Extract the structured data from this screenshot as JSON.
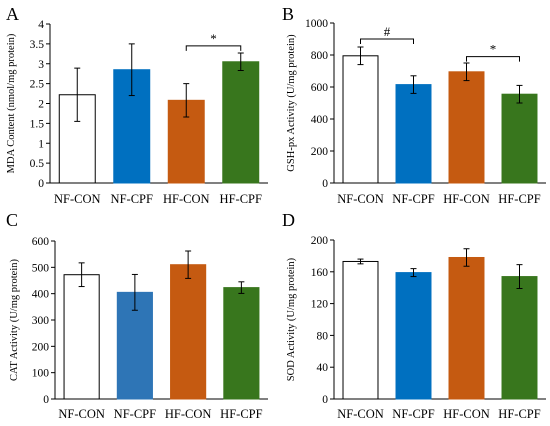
{
  "chart_data": [
    {
      "type": "bar",
      "panel_label": "A",
      "ylabel": "MDA Content (nmol/mg protein)",
      "categories": [
        "NF-CON",
        "NF-CPF",
        "HF-CON",
        "HF-CPF"
      ],
      "values": [
        2.22,
        2.85,
        2.08,
        3.05
      ],
      "errors": [
        0.67,
        0.65,
        0.42,
        0.22
      ],
      "ylim": [
        0,
        4
      ],
      "yticks": [
        "0",
        "0.5",
        "1",
        "1.5",
        "2",
        "2.5",
        "3",
        "3.5",
        "4"
      ],
      "annotations": [
        {
          "text": "*",
          "from": 2,
          "to": 3,
          "y": 3.45
        }
      ]
    },
    {
      "type": "bar",
      "panel_label": "B",
      "ylabel": "GSH-px Activity (U/mg protein)",
      "categories": [
        "NF-CON",
        "NF-CPF",
        "HF-CON",
        "HF-CPF"
      ],
      "values": [
        795,
        615,
        695,
        555
      ],
      "errors": [
        55,
        55,
        55,
        55
      ],
      "ylim": [
        0,
        1000
      ],
      "yticks": [
        "0",
        "200",
        "400",
        "600",
        "800",
        "1000"
      ],
      "annotations": [
        {
          "text": "#",
          "from": 0,
          "to": 1,
          "y": 900
        },
        {
          "text": "*",
          "from": 2,
          "to": 3,
          "y": 790
        }
      ]
    },
    {
      "type": "bar",
      "panel_label": "C",
      "ylabel": "CAT Activity (U/mg protein)",
      "categories": [
        "NF-CON",
        "NF-CPF",
        "HF-CON",
        "HF-CPF"
      ],
      "values": [
        472,
        405,
        510,
        423
      ],
      "errors": [
        45,
        68,
        52,
        22
      ],
      "ylim": [
        0,
        600
      ],
      "yticks": [
        "0",
        "100",
        "200",
        "300",
        "400",
        "500",
        "600"
      ],
      "annotations": []
    },
    {
      "type": "bar",
      "panel_label": "D",
      "ylabel": "SOD Activity (U/mg protein)",
      "categories": [
        "NF-CON",
        "NF-CPF",
        "HF-CON",
        "HF-CPF"
      ],
      "values": [
        173,
        159,
        178,
        154
      ],
      "errors": [
        3,
        5,
        11,
        15
      ],
      "ylim": [
        0,
        200
      ],
      "yticks": [
        "0",
        "40",
        "80",
        "120",
        "160",
        "200"
      ],
      "annotations": []
    }
  ],
  "colors": {
    "NF-CON": "#ffffff",
    "NF-CPF": "#0070c0",
    "HF-CON": "#c55a11",
    "HF-CPF": "#38761d",
    "NF-CPF_panelC": "#2e75b6"
  }
}
